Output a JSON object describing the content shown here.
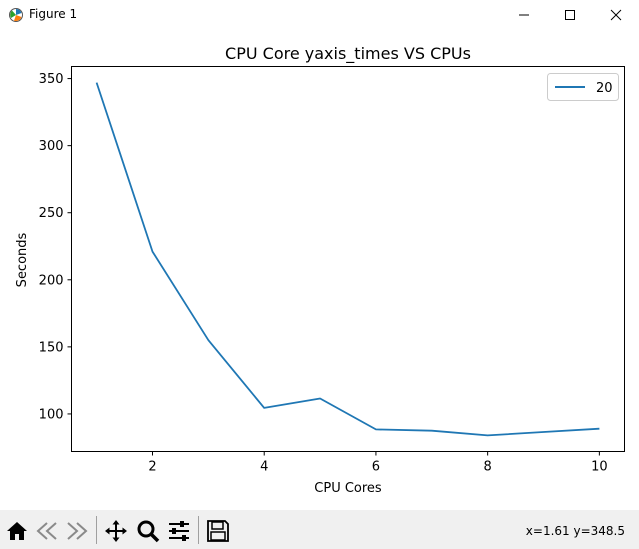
{
  "window": {
    "title": "Figure 1",
    "controls": [
      "minimize",
      "maximize",
      "close"
    ]
  },
  "toolbar": {
    "buttons": [
      {
        "name": "home",
        "icon": "home-icon"
      },
      {
        "name": "back",
        "icon": "back-arrow-icon"
      },
      {
        "name": "forward",
        "icon": "forward-arrow-icon"
      },
      {
        "name": "pan",
        "icon": "pan-icon"
      },
      {
        "name": "zoom",
        "icon": "zoom-icon"
      },
      {
        "name": "configure-subplots",
        "icon": "sliders-icon"
      },
      {
        "name": "save",
        "icon": "save-icon"
      }
    ],
    "coords": "x=1.61 y=348.5"
  },
  "chart_data": {
    "type": "line",
    "title": "CPU Core yaxis_times VS CPUs",
    "xlabel": "CPU Cores",
    "ylabel": "Seconds",
    "x": [
      1,
      2,
      3,
      4,
      5,
      6,
      7,
      8,
      9,
      10
    ],
    "series": [
      {
        "name": "20",
        "color": "#1f77b4",
        "values": [
          347,
          221,
          155,
          104.5,
          111.5,
          88.5,
          87.5,
          84,
          86.5,
          89
        ]
      }
    ],
    "xlim": [
      0.55,
      10.45
    ],
    "ylim": [
      72,
      359
    ],
    "xticks": [
      2,
      4,
      6,
      8,
      10
    ],
    "yticks": [
      100,
      150,
      200,
      250,
      300,
      350
    ],
    "grid": false,
    "legend": "top-right"
  }
}
